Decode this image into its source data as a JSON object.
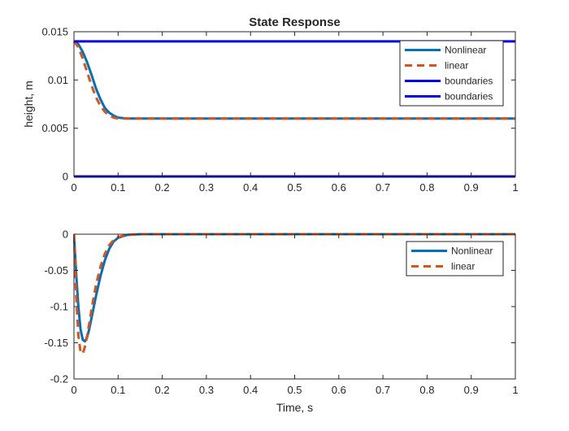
{
  "chart_data": [
    {
      "type": "line",
      "title": "State Response",
      "xlabel": "",
      "ylabel": "height, m",
      "xlim": [
        0,
        1
      ],
      "ylim": [
        0,
        0.015
      ],
      "xticks": [
        "0",
        "0.1",
        "0.2",
        "0.3",
        "0.4",
        "0.5",
        "0.6",
        "0.7",
        "0.8",
        "0.9",
        "1"
      ],
      "yticks": [
        "0",
        "0.005",
        "0.01",
        "0.015"
      ],
      "grid": false,
      "legend_position": "top-right",
      "series": [
        {
          "name": "Nonlinear",
          "color": "#0072BD",
          "style": "solid",
          "x": [
            0,
            0.01,
            0.02,
            0.03,
            0.04,
            0.05,
            0.06,
            0.07,
            0.08,
            0.09,
            0.1,
            0.12,
            0.15,
            0.2,
            0.3,
            0.5,
            0.7,
            1.0
          ],
          "y": [
            0.014,
            0.0137,
            0.0129,
            0.0118,
            0.0105,
            0.0091,
            0.008,
            0.0071,
            0.0066,
            0.0063,
            0.0061,
            0.006,
            0.006,
            0.006,
            0.006,
            0.006,
            0.006,
            0.006
          ]
        },
        {
          "name": "linear",
          "color": "#D95319",
          "style": "dashed",
          "x": [
            0,
            0.01,
            0.02,
            0.03,
            0.04,
            0.05,
            0.06,
            0.07,
            0.08,
            0.09,
            0.1,
            0.12,
            0.15,
            0.2,
            0.3,
            0.5,
            0.7,
            1.0
          ],
          "y": [
            0.014,
            0.0134,
            0.0122,
            0.0108,
            0.0094,
            0.0082,
            0.0073,
            0.0067,
            0.0063,
            0.0061,
            0.006,
            0.006,
            0.006,
            0.006,
            0.006,
            0.006,
            0.006,
            0.006
          ]
        },
        {
          "name": "boundaries",
          "color": "#0000E6",
          "style": "solid",
          "x": [
            0,
            1
          ],
          "y": [
            0.014,
            0.014
          ]
        },
        {
          "name": "boundaries",
          "color": "#0000E6",
          "style": "solid",
          "x": [
            0,
            1
          ],
          "y": [
            0,
            0
          ]
        }
      ]
    },
    {
      "type": "line",
      "title": "",
      "xlabel": "Time, s",
      "ylabel": "",
      "xlim": [
        0,
        1
      ],
      "ylim": [
        -0.2,
        0
      ],
      "xticks": [
        "0",
        "0.1",
        "0.2",
        "0.3",
        "0.4",
        "0.5",
        "0.6",
        "0.7",
        "0.8",
        "0.9",
        "1"
      ],
      "yticks": [
        "-0.2",
        "-0.15",
        "-0.1",
        "-0.05",
        "0"
      ],
      "grid": false,
      "legend_position": "top-right",
      "series": [
        {
          "name": "Nonlinear",
          "color": "#0072BD",
          "style": "solid",
          "x": [
            0,
            0.005,
            0.01,
            0.015,
            0.02,
            0.025,
            0.03,
            0.035,
            0.04,
            0.05,
            0.06,
            0.07,
            0.08,
            0.09,
            0.1,
            0.12,
            0.15,
            0.2,
            0.3,
            0.5,
            0.7,
            1.0
          ],
          "y": [
            0,
            -0.055,
            -0.1,
            -0.132,
            -0.146,
            -0.148,
            -0.142,
            -0.13,
            -0.115,
            -0.085,
            -0.058,
            -0.036,
            -0.02,
            -0.01,
            -0.005,
            -0.001,
            0,
            0,
            0,
            0,
            0,
            0
          ]
        },
        {
          "name": "linear",
          "color": "#D95319",
          "style": "dashed",
          "x": [
            0,
            0.005,
            0.01,
            0.015,
            0.02,
            0.025,
            0.03,
            0.035,
            0.04,
            0.05,
            0.06,
            0.07,
            0.08,
            0.09,
            0.1,
            0.12,
            0.15,
            0.2,
            0.3,
            0.5,
            0.7,
            1.0
          ],
          "y": [
            0,
            -0.085,
            -0.14,
            -0.163,
            -0.165,
            -0.155,
            -0.14,
            -0.122,
            -0.103,
            -0.07,
            -0.045,
            -0.027,
            -0.015,
            -0.008,
            -0.004,
            -0.001,
            0,
            0,
            0,
            0,
            0,
            0
          ]
        }
      ]
    }
  ]
}
